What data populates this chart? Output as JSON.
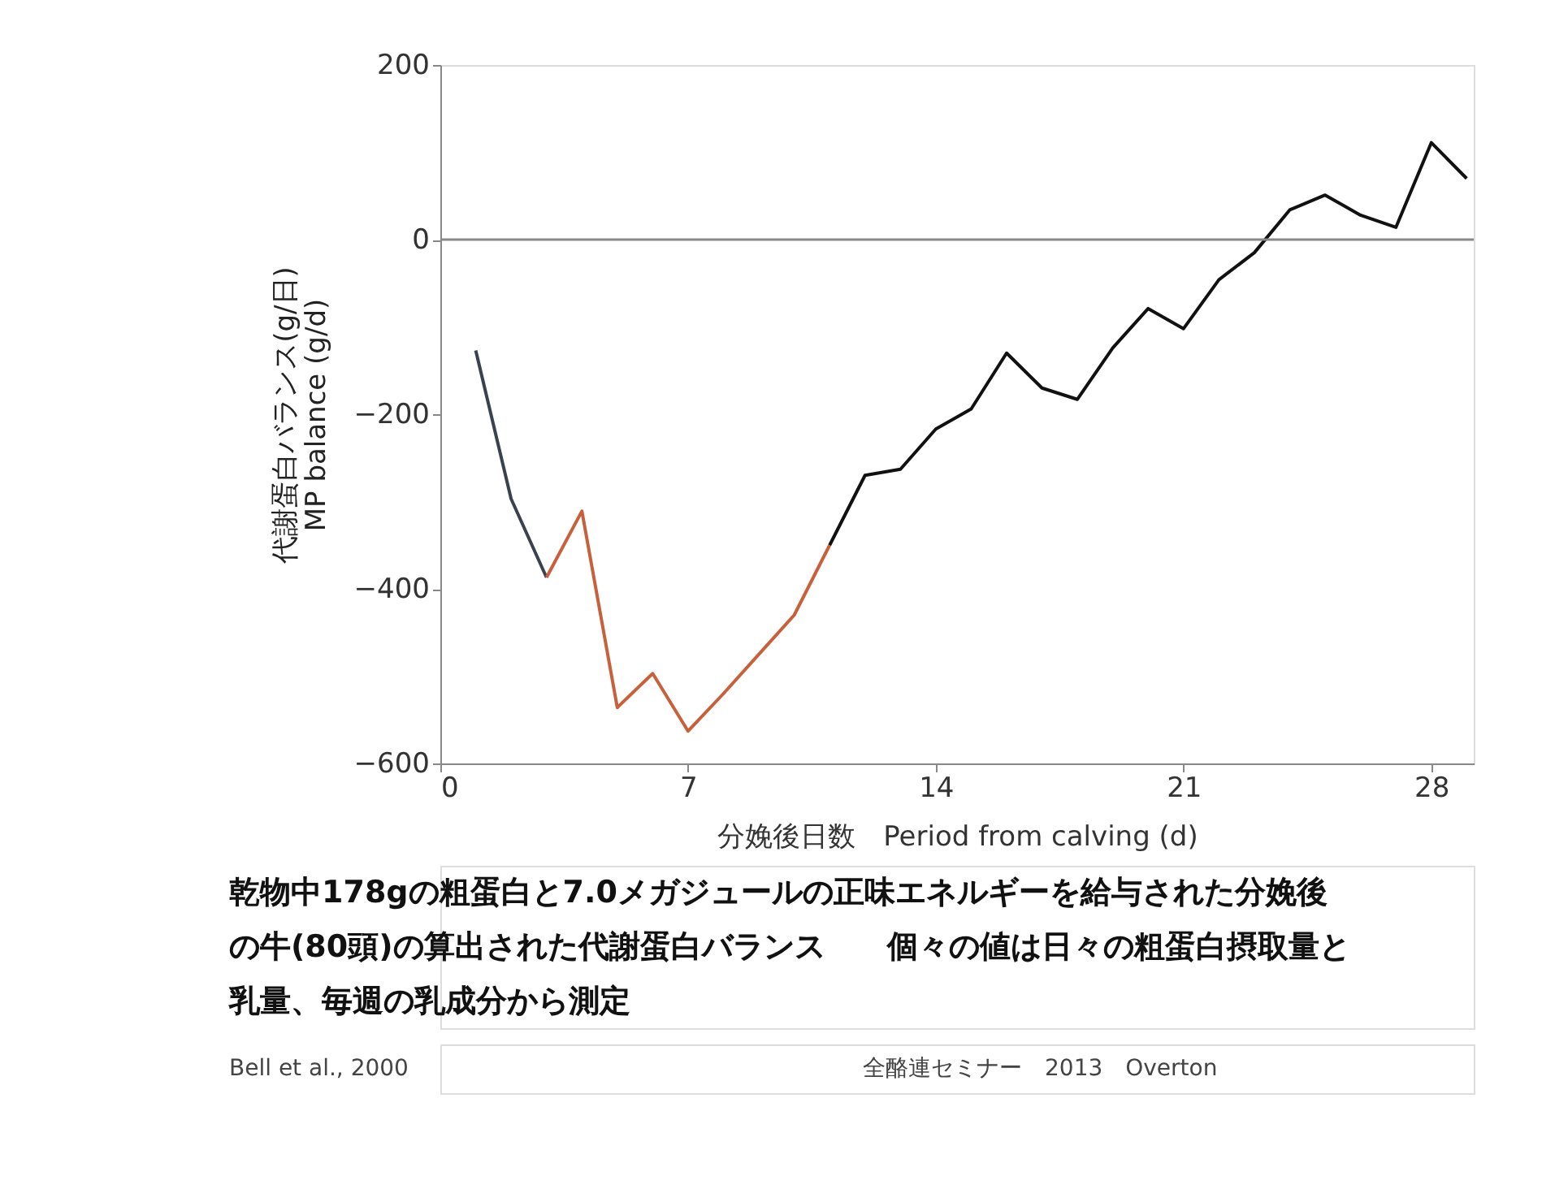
{
  "chart_data": {
    "type": "line",
    "xlabel": "分娩後日数　Period from calving (d)",
    "ylabel": "代謝蛋白バランス(g/日)\nMP balance (g/d)",
    "series": [
      {
        "color": "#3a4250",
        "x": [
          1,
          2,
          3
        ],
        "values": [
          -127,
          -297,
          -387
        ]
      },
      {
        "color": "#c8603c",
        "x": [
          3,
          4,
          5,
          6,
          7,
          8,
          9,
          10,
          11
        ],
        "values": [
          -387,
          -311,
          -536,
          -497,
          -563,
          -520,
          -475,
          -430,
          -350
        ]
      },
      {
        "color": "#111111",
        "x": [
          11,
          12,
          13,
          14,
          15,
          16,
          17,
          18,
          19,
          20,
          21,
          22,
          23,
          24,
          25,
          26,
          27,
          28,
          29
        ],
        "values": [
          -350,
          -270,
          -263,
          -217,
          -194,
          -130,
          -170,
          -183,
          -124,
          -79,
          -102,
          -46,
          -15,
          34,
          51,
          28,
          14,
          111,
          70
        ]
      }
    ],
    "xlim": [
      0,
      29.2
    ],
    "xticks": [
      0,
      7,
      14,
      21,
      28
    ],
    "ylim": [
      -600,
      200
    ],
    "yticks": [
      -600,
      -400,
      -200,
      0,
      200
    ],
    "ref_lines": [
      {
        "axis": "y",
        "value": 0,
        "color": "#888888"
      }
    ],
    "grid": false,
    "line_style": "solid",
    "marker": "none",
    "annotations": [
      "乾物中178gの粗蛋白と7.0メガジュールの正味エネルギーを給与された分娩後の牛(80頭)の算出された代謝蛋白バランス　　個々の値は日々の粗蛋白摂取量と乳量、毎週の乳成分から測定",
      "Bell et al., 2000",
      "全酪連セミナー　2013　Overton"
    ]
  }
}
